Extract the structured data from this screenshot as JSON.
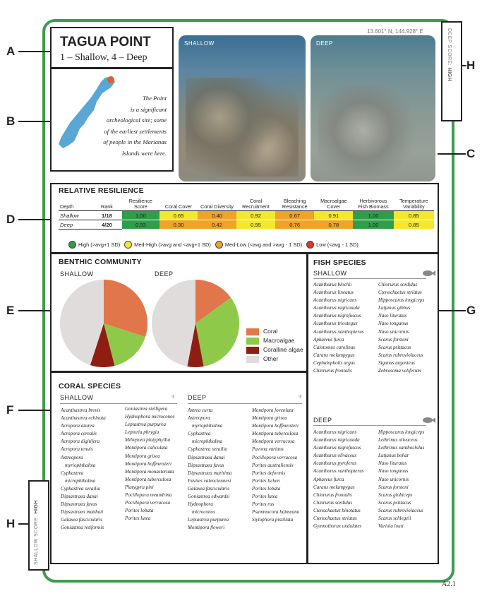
{
  "coords": "13.601° N, 144.928° E",
  "title": "TAGUA POINT",
  "subtitle": "1 – Shallow, 4 – Deep",
  "note_lines": [
    "The Point",
    "is a significant",
    "archeological site; some",
    "of the earliest settlements",
    "of people in the Marianas",
    "Islands were here."
  ],
  "side_labels": {
    "a": "A",
    "b": "B",
    "c": "C",
    "d": "D",
    "e": "E",
    "f": "F",
    "g": "G",
    "h1": "H",
    "h2": "H"
  },
  "photos": {
    "shallow": "SHALLOW",
    "deep": "DEEP"
  },
  "deep_score": {
    "label": "DEEP SCORE:",
    "value": "HIGH"
  },
  "shallow_score": {
    "label": "SHALLOW SCORE:",
    "value": "HIGH"
  },
  "resilience": {
    "title": "RELATIVE RESILIENCE",
    "headers": [
      "Depth",
      "Rank",
      "Resilience Score",
      "Coral Cover",
      "Coral Diversity",
      "Coral Recruitment",
      "Bleaching Resistance",
      "Macroalgae Cover",
      "Herbivorous Fish Biomass",
      "Temperature Variability"
    ],
    "rows": [
      {
        "depth": "Shallow",
        "rank": "1/18",
        "vals": [
          "1.00",
          "0.65",
          "0.40",
          "0.92",
          "0.67",
          "0.91",
          "1.00",
          "0.85"
        ],
        "colors": [
          "#2e9e48",
          "#f5e82a",
          "#f0a324",
          "#f5e82a",
          "#f0a324",
          "#f5e82a",
          "#2e9e48",
          "#f5e82a"
        ]
      },
      {
        "depth": "Deep",
        "rank": "4/20",
        "vals": [
          "0.93",
          "0.30",
          "0.42",
          "0.95",
          "0.76",
          "0.78",
          "1.00",
          "0.85"
        ],
        "colors": [
          "#2e9e48",
          "#f0a324",
          "#f0a324",
          "#f5e82a",
          "#f0a324",
          "#f0a324",
          "#2e9e48",
          "#f5e82a"
        ]
      }
    ],
    "legend": [
      {
        "label": "High (>avg+1 SD)",
        "color": "#2e9e48"
      },
      {
        "label": "Med-High (>avg and <avg+1 SD)",
        "color": "#f5e82a"
      },
      {
        "label": "Med-Low (<avg and >avg - 1 SD)",
        "color": "#f0a324"
      },
      {
        "label": "Low (<avg - 1 SD)",
        "color": "#e0352e"
      }
    ]
  },
  "benthic": {
    "title": "BENTHIC COMMUNITY",
    "shallow_label": "SHALLOW",
    "deep_label": "DEEP",
    "legend": [
      {
        "label": "Coral",
        "color": "#e0764a"
      },
      {
        "label": "Macroalgae",
        "color": "#8fc94a"
      },
      {
        "label": "Coralline algae",
        "color": "#8e1d12"
      },
      {
        "label": "Other",
        "color": "#e0dcdc"
      }
    ]
  },
  "chart_data": [
    {
      "type": "pie",
      "categories": [
        "Coral",
        "Macroalgae",
        "Coralline algae",
        "Other"
      ],
      "values": [
        30,
        16,
        9,
        45
      ]
    },
    {
      "type": "pie",
      "categories": [
        "Coral",
        "Macroalgae",
        "Coralline algae",
        "Other"
      ],
      "values": [
        15,
        32,
        6,
        47
      ]
    }
  ],
  "coral": {
    "title": "CORAL SPECIES",
    "shallow_label": "SHALLOW",
    "deep_label": "DEEP",
    "shallow_col1": [
      "Acanthastrea brevis",
      "Acanthastrea echinata",
      "Acropora azurea",
      "Acropora cerealis",
      "Acropora digitifera",
      "Acropora tenuis",
      "Astreopora",
      "myriophthalma",
      "Cyphastrea",
      "microphthalma",
      "Cyphastrea serailia",
      "Dipsastraea danai",
      "Dipsastraea favus",
      "Dipsastraea matthaii",
      "Galaxea fascicularis",
      "Goniastrea retiformis"
    ],
    "shallow_col2": [
      "Goniastrea stelligera",
      "Hydnophora microconos",
      "Leptastrea purpurea",
      "Leptoria phrygia",
      "Millepora platyphyllia",
      "Montipora caliculata",
      "Montipora grisea",
      "Montipora hoffmeisteri",
      "Montipora monasteriata",
      "Montipora tuberculosa",
      "Platygyra pini",
      "Pocillopora meandrina",
      "Pocillopora verrucosa",
      "Porites lobata",
      "Porites lutea"
    ],
    "deep_col1": [
      "Astrea curta",
      "Astreopora",
      "myriophthalma",
      "Cyphastrea",
      "microphthalma",
      "Cyphastrea serailia",
      "Dipsastraea danai",
      "Dipsastraea favus",
      "Dipsastraea maritima",
      "Favites valenciennesi",
      "Galaxea fascicularis",
      "Goniastrea edwardsi",
      "Hydnophora",
      "microconos",
      "Leptastrea purpurea",
      "Montipora floweri"
    ],
    "deep_col2": [
      "Montipora foveolata",
      "Montipora grisea",
      "Montipora hoffmeisteri",
      "Montipora tuberculosa",
      "Montipora verrucosa",
      "Pavona varians",
      "Pocillopora verrucosa",
      "Porites australiensis",
      "Porites deformis",
      "Porites lichen",
      "Porites lobata",
      "Porites lutea",
      "Porites rus",
      "Psammocora haimeana",
      "Stylophora pistillata"
    ]
  },
  "fish": {
    "title": "FISH SPECIES",
    "shallow_label": "SHALLOW",
    "deep_label": "DEEP",
    "shallow_col1": [
      "Acanthurus blochii",
      "Acanthurus lineatus",
      "Acanthurus nigricans",
      "Acanthurus nigricauda",
      "Acanthurus nigrofuscus",
      "Acanthurus triostegus",
      "Acanthurus xanthopterus",
      "Aphareus furca",
      "Calotomus carolinus",
      "Caranx melampygus",
      "Cephalopholis argus",
      "Chlorurus frontalis"
    ],
    "shallow_col2": [
      "Chlorurus sordidus",
      "Ctenochaetus striatus",
      "Hipposcarus longiceps",
      "Lutjanus gibbus",
      "Naso lituratus",
      "Naso tonganus",
      "Naso unicornis",
      "Scarus forsteni",
      "Scarus psittacus",
      "Scarus rubroviolaceus",
      "Siganus argenteus",
      "Zebrasoma veliferum"
    ],
    "deep_col1": [
      "Acanthurus nigricans",
      "Acanthurus nigricauda",
      "Acanthurus nigrofuscus",
      "Acanthurus olivaceus",
      "Acanthurus pyroferus",
      "Acanthurus xanthopterus",
      "Aphareus furca",
      "Caranx melampygus",
      "Chlorurus frontalis",
      "Chlorurus sordidus",
      "Ctenochaetus binotatus",
      "Ctenochaetus striatus",
      "Gymnothorax undulates"
    ],
    "deep_col2": [
      "Hipposcarus longiceps",
      "Lethrinus olivaceus",
      "Lethrinus xanthochilus",
      "Lutjanus bohar",
      "Naso lituratus",
      "Naso tonganus",
      "Naso unicornis",
      "Scarus forsteni",
      "Scarus globiceps",
      "Scarus psittacus",
      "Scarus rubroviolaceus",
      "Scarus schlegeli",
      "Variola louti"
    ]
  },
  "page_number": "A2.1"
}
